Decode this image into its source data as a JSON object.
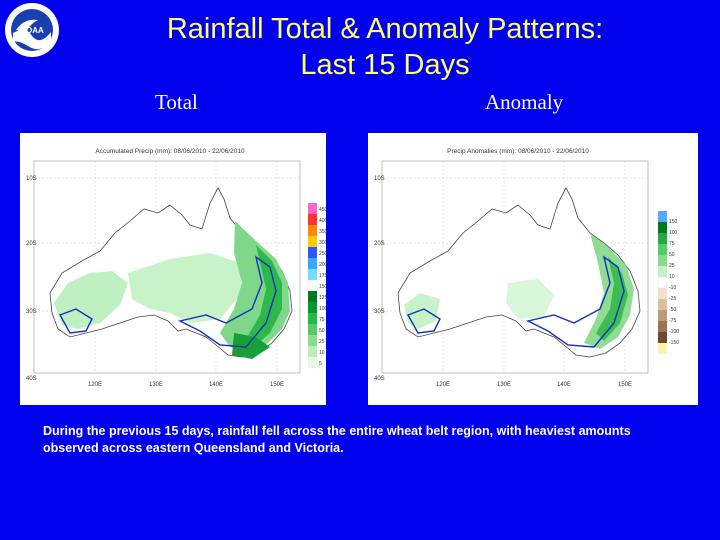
{
  "title_line1": "Rainfall Total & Anomaly Patterns:",
  "title_line2": "Last 15 Days",
  "logo_text": "NOAA",
  "subtitle_total": "Total",
  "subtitle_anomaly": "Anomaly",
  "left_map": {
    "header": "Accumulated Precip (mm): 08/06/2010 - 22/06/2010",
    "lat_labels": [
      "10S",
      "20S",
      "30S",
      "40S"
    ],
    "lon_labels": [
      "120E",
      "130E",
      "140E",
      "150E"
    ],
    "legend": [
      "450",
      "400",
      "350",
      "300",
      "250",
      "200",
      "175",
      "150",
      "125",
      "100",
      "75",
      "50",
      "25",
      "10",
      "5"
    ]
  },
  "right_map": {
    "header": "Precip Anomalies (mm): 08/06/2010 - 22/06/2010",
    "lat_labels": [
      "10S",
      "20S",
      "30S",
      "40S"
    ],
    "lon_labels": [
      "120E",
      "130E",
      "140E",
      "150E"
    ],
    "legend": [
      "150",
      "100",
      "75",
      "50",
      "25",
      "10",
      "-10",
      "-25",
      "-50",
      "-75",
      "-100",
      "-150"
    ]
  },
  "caption": "During the previous 15 days, rainfall fell across the entire wheat belt region, with heaviest amounts observed across eastern Queensland and Victoria."
}
